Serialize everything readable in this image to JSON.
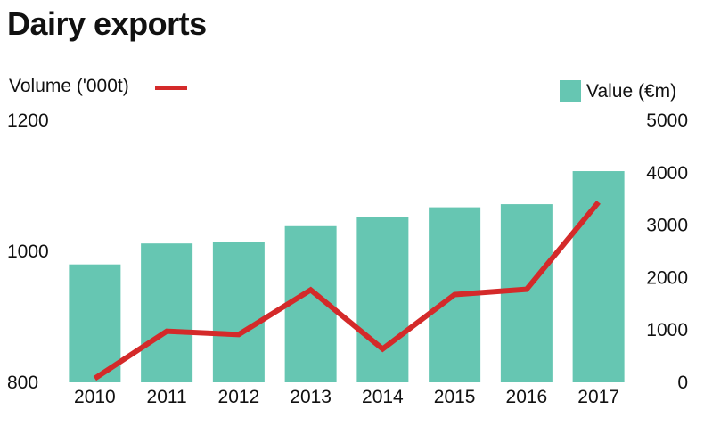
{
  "chart_data": {
    "type": "bar",
    "title": "Dairy exports",
    "categories": [
      "2010",
      "2011",
      "2012",
      "2013",
      "2014",
      "2015",
      "2016",
      "2017"
    ],
    "series": [
      {
        "name": "Value (€m)",
        "type": "bar",
        "axis": "right",
        "values": [
          2250,
          2650,
          2680,
          2980,
          3150,
          3340,
          3400,
          4030
        ]
      },
      {
        "name": "Volume ('000t)",
        "type": "line",
        "axis": "left",
        "values": [
          806,
          878,
          873,
          941,
          851,
          934,
          942,
          1075
        ]
      }
    ],
    "left_axis": {
      "ylim": [
        800,
        1200
      ],
      "ticks": [
        "800",
        "1000",
        "1200"
      ]
    },
    "right_axis": {
      "ylim": [
        0,
        5000
      ],
      "ticks": [
        "0",
        "1000",
        "2000",
        "3000",
        "4000",
        "5000"
      ]
    },
    "grid": false,
    "legend": [
      {
        "label": "Volume ('000t)",
        "placement": "top-left"
      },
      {
        "label": "Value (€m)",
        "placement": "top-right"
      }
    ],
    "colors": {
      "bar": "#66c6b2",
      "line": "#d42a2a",
      "text": "#111111"
    }
  }
}
